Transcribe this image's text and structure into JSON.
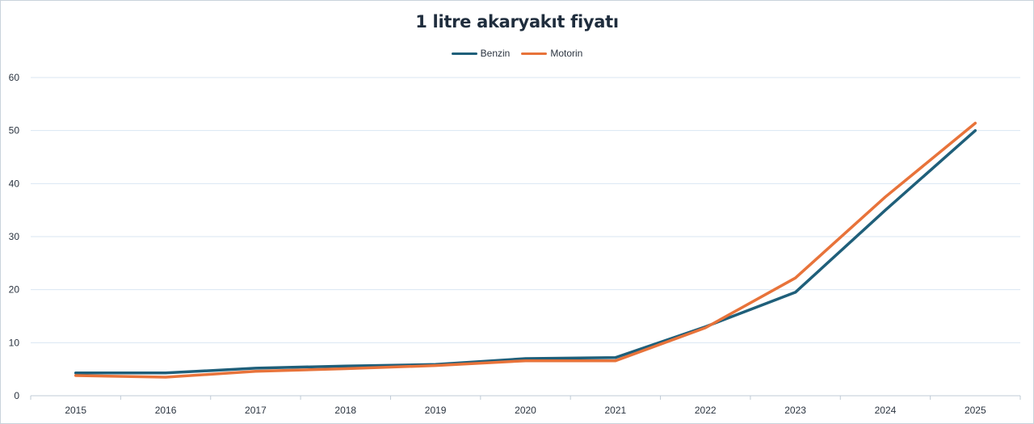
{
  "chart_data": {
    "type": "line",
    "title": "1 litre akaryakıt fiyatı",
    "xlabel": "",
    "ylabel": "",
    "categories": [
      "2015",
      "2016",
      "2017",
      "2018",
      "2019",
      "2020",
      "2021",
      "2022",
      "2023",
      "2024",
      "2025"
    ],
    "ylim": [
      0,
      60
    ],
    "yticks": [
      "0",
      "10",
      "20",
      "30",
      "40",
      "50",
      "60"
    ],
    "grid": true,
    "legend_position": "top-center",
    "series": [
      {
        "name": "Benzin",
        "color": "#1f5f7a",
        "values": [
          4.3,
          4.3,
          5.2,
          5.6,
          5.9,
          7.0,
          7.2,
          13.0,
          19.5,
          35.0,
          50.0
        ]
      },
      {
        "name": "Motorin",
        "color": "#e8733a",
        "values": [
          3.8,
          3.5,
          4.6,
          5.1,
          5.7,
          6.6,
          6.6,
          12.8,
          22.2,
          37.5,
          51.4
        ]
      }
    ]
  }
}
